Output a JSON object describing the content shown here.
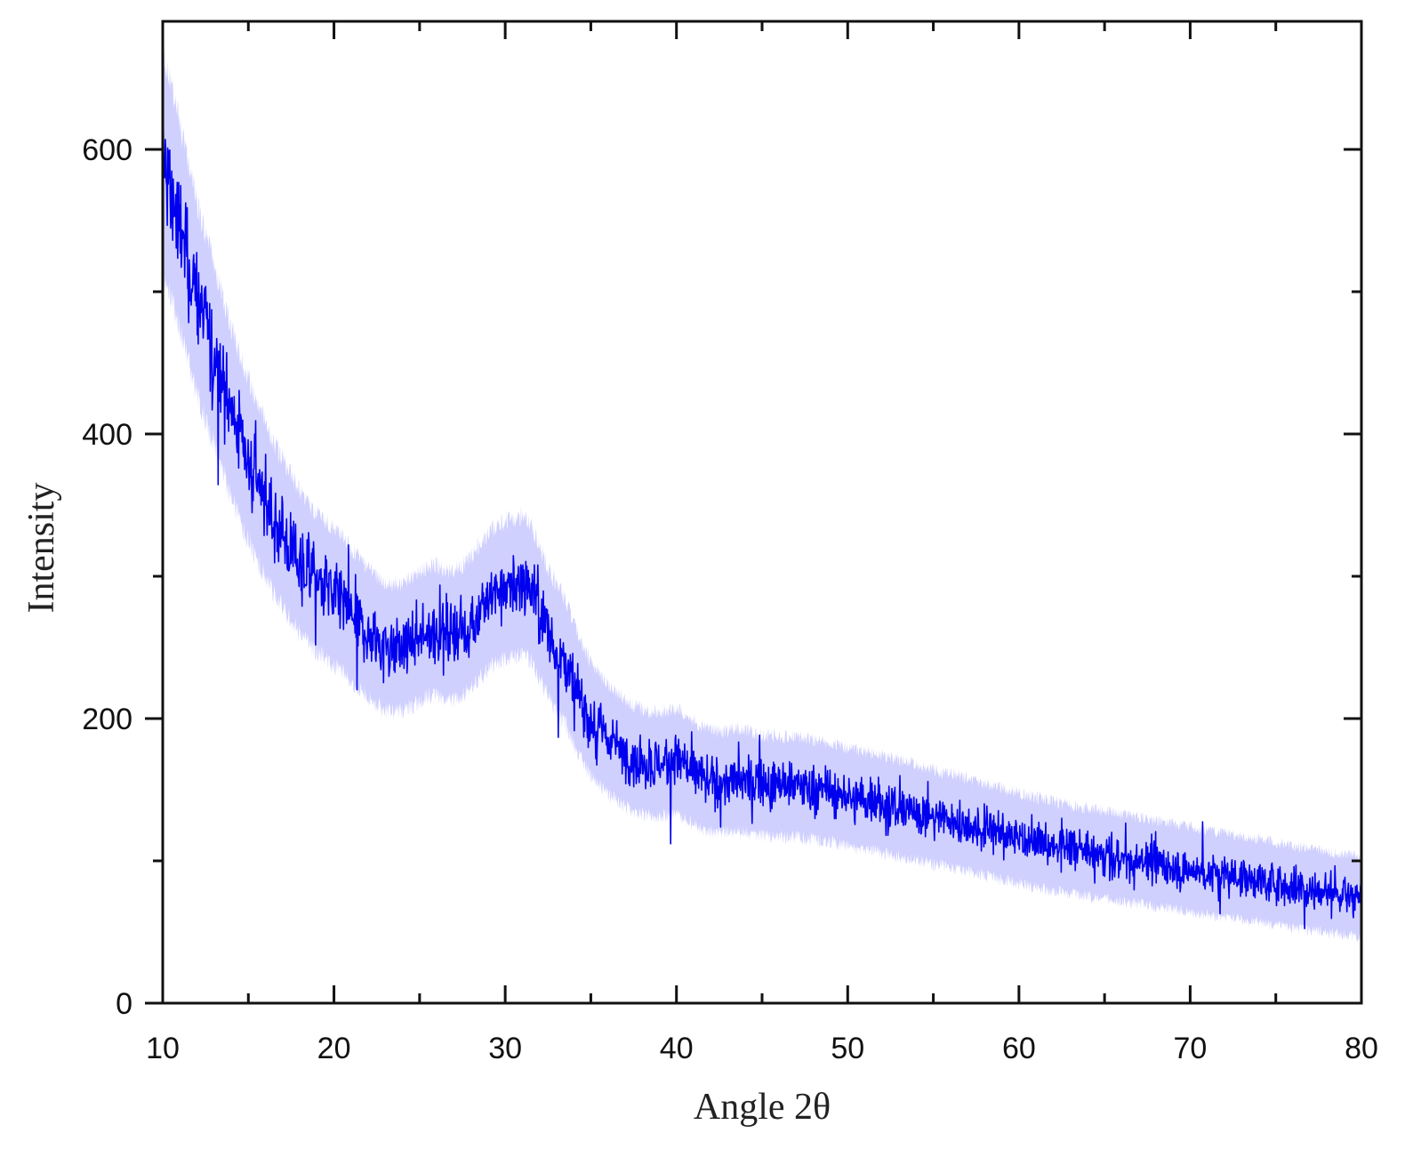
{
  "chart_data": {
    "type": "line",
    "title": "",
    "xlabel": "Angle 2θ",
    "ylabel": "Intensity",
    "xlim": [
      10,
      80
    ],
    "ylim": [
      0,
      690
    ],
    "x_ticks": [
      10,
      20,
      30,
      40,
      50,
      60,
      70,
      80
    ],
    "x_tick_labels": [
      "10",
      "20",
      "30",
      "40",
      "50",
      "60",
      "70",
      "80"
    ],
    "y_ticks": [
      0,
      200,
      400,
      600
    ],
    "y_tick_labels": [
      "0",
      "200",
      "400",
      "600"
    ],
    "grid": false,
    "legend": "none",
    "line_color": "#0000ee",
    "noise_color": "#7777ff",
    "series": [
      {
        "x": [
          10,
          10.5,
          11,
          11.5,
          12,
          12.5,
          13,
          13.5,
          14,
          14.5,
          15,
          15.5,
          16,
          16.5,
          17,
          17.5,
          18,
          18.5,
          19,
          19.5,
          20,
          20.5,
          21,
          21.5,
          22,
          22.5,
          23,
          23.5,
          24,
          24.5,
          25,
          25.5,
          26,
          26.5,
          27,
          27.5,
          28,
          28.5,
          29,
          29.5,
          30,
          30.5,
          31,
          31.5,
          32,
          32.5,
          33,
          33.5,
          34,
          34.5,
          35,
          35.5,
          36,
          36.5,
          37,
          37.5,
          38,
          38.5,
          39,
          39.5,
          40,
          40.5,
          41,
          41.5,
          42,
          42.5,
          43,
          43.5,
          44,
          44.5,
          45,
          46,
          47,
          48,
          49,
          50,
          51,
          52,
          53,
          54,
          55,
          56,
          57,
          58,
          59,
          60,
          61,
          62,
          63,
          64,
          65,
          66,
          67,
          68,
          69,
          70,
          71,
          72,
          73,
          74,
          75,
          76,
          77,
          78,
          79,
          80
        ],
        "values": [
          590,
          570,
          545,
          520,
          495,
          475,
          455,
          435,
          415,
          398,
          382,
          367,
          353,
          340,
          330,
          320,
          310,
          302,
          296,
          290,
          285,
          280,
          273,
          267,
          260,
          255,
          250,
          249,
          250,
          253,
          257,
          262,
          262,
          258,
          258,
          262,
          268,
          275,
          283,
          288,
          290,
          292,
          294,
          288,
          275,
          260,
          250,
          240,
          225,
          210,
          200,
          192,
          185,
          180,
          175,
          172,
          170,
          168,
          168,
          169,
          170,
          167,
          162,
          158,
          156,
          155,
          156,
          157,
          156,
          154,
          153,
          152,
          152,
          150,
          148,
          145,
          142,
          140,
          137,
          134,
          131,
          128,
          125,
          122,
          119,
          116,
          113,
          110,
          108,
          106,
          104,
          102,
          100,
          98,
          96,
          94,
          92,
          90,
          88,
          86,
          84,
          82,
          80,
          78,
          76,
          75
        ]
      }
    ]
  }
}
